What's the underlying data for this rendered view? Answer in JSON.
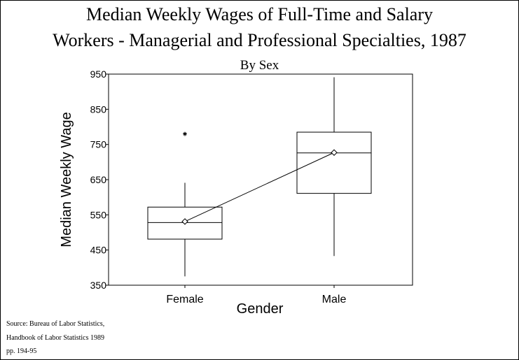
{
  "chart_data": {
    "type": "box",
    "title_line1": "Median Weekly Wages of Full-Time and Salary",
    "title_line2": "Workers - Managerial and Professional Specialties, 1987",
    "subtitle": "By Sex",
    "xlabel": "Gender",
    "ylabel": "Median Weekly Wage",
    "ylim": [
      350,
      950
    ],
    "yticks": [
      350,
      450,
      550,
      650,
      750,
      850,
      950
    ],
    "categories": [
      "Female",
      "Male"
    ],
    "boxes": [
      {
        "category": "Female",
        "whisker_low": 375,
        "q1": 481,
        "median": 528,
        "q3": 572,
        "whisker_high": 641,
        "mean": 531,
        "outliers": [
          780
        ]
      },
      {
        "category": "Male",
        "whisker_low": 433,
        "q1": 611,
        "median": 726,
        "q3": 785,
        "whisker_high": 941,
        "mean": 727,
        "outliers": []
      }
    ],
    "mean_line": true,
    "grid": false,
    "legend": "none"
  },
  "source": {
    "line1": "Source: Bureau of Labor Statistics,",
    "line2": "Handbook of Labor Statistics 1989",
    "line3": "pp. 194-95"
  }
}
